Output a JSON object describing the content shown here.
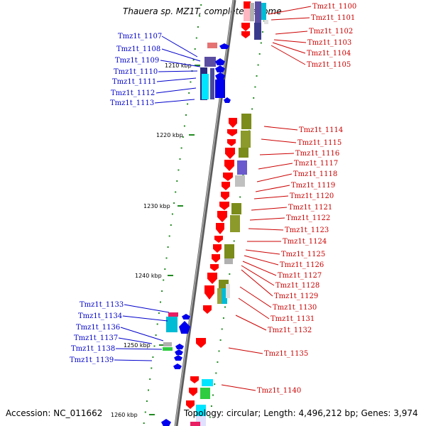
{
  "title": "Thauera sp. MZ1T, complete genome",
  "footer": {
    "accession": "Accession: NC_011662",
    "topology": "Topology: circular; Length: 4,496,212 bp; Genes: 3,974"
  },
  "colors": {
    "forward_label": "#cc0000",
    "reverse_label": "#0000cc",
    "backbone": "#808080",
    "tick": "#228B22"
  },
  "ticks": [
    "1210 kbp",
    "1220 kbp",
    "1230 kbp",
    "1240 kbp",
    "1250 kbp",
    "1260 kbp"
  ],
  "genes_reverse": [
    "Tmz1t_1107",
    "Tmz1t_1108",
    "Tmz1t_1109",
    "Tmz1t_1110",
    "Tmz1t_1111",
    "Tmz1t_1112",
    "Tmz1t_1113",
    "Tmz1t_1133",
    "Tmz1t_1134",
    "Tmz1t_1136",
    "Tmz1t_1137",
    "Tmz1t_1138",
    "Tmz1t_1139"
  ],
  "genes_forward": [
    "Tmz1t_1100",
    "Tmz1t_1101",
    "Tmz1t_1102",
    "Tmz1t_1103",
    "Tmz1t_1104",
    "Tmz1t_1105",
    "Tmz1t_1114",
    "Tmz1t_1115",
    "Tmz1t_1116",
    "Tmz1t_1117",
    "Tmz1t_1118",
    "Tmz1t_1119",
    "Tmz1t_1120",
    "Tmz1t_1121",
    "Tmz1t_1122",
    "Tmz1t_1123",
    "Tmz1t_1124",
    "Tmz1t_1125",
    "Tmz1t_1126",
    "Tmz1t_1127",
    "Tmz1t_1128",
    "Tmz1t_1129",
    "Tmz1t_1130",
    "Tmz1t_1131",
    "Tmz1t_1132",
    "Tmz1t_1135",
    "Tmz1t_1140"
  ]
}
